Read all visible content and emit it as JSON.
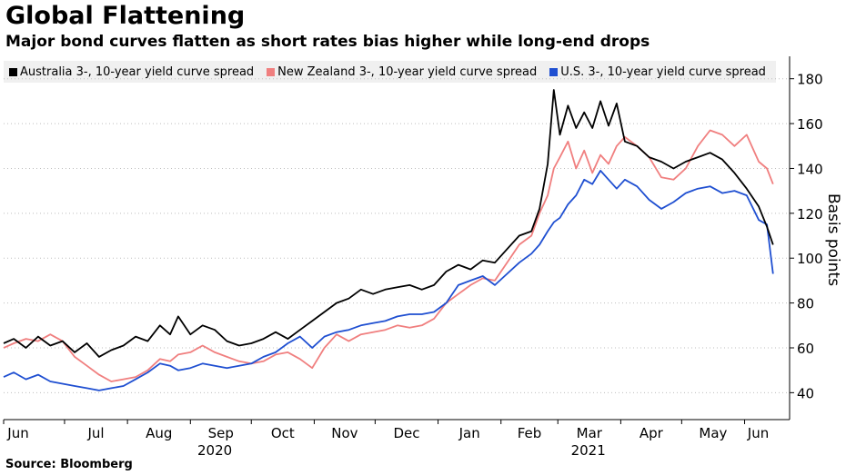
{
  "chart_data": {
    "type": "line",
    "title": "Global Flattening",
    "subtitle": "Major bond curves flatten as short rates bias higher while long-end drops",
    "ylabel": "Basis points",
    "source": "Source: Bloomberg",
    "ylim": [
      28,
      190
    ],
    "y_ticks": [
      40,
      60,
      80,
      100,
      120,
      140,
      160,
      180
    ],
    "x_start": "2020-06-01",
    "x_end": "2021-06-16",
    "x_ticks": [
      {
        "label": "Jun",
        "date": "2020-06-01"
      },
      {
        "label": "Jul",
        "date": "2020-07-01"
      },
      {
        "label": "Aug",
        "date": "2020-08-01"
      },
      {
        "label": "Sep",
        "date": "2020-09-01"
      },
      {
        "label": "Oct",
        "date": "2020-10-01"
      },
      {
        "label": "Nov",
        "date": "2020-11-01"
      },
      {
        "label": "Dec",
        "date": "2020-12-01"
      },
      {
        "label": "Jan",
        "date": "2021-01-01"
      },
      {
        "label": "Feb",
        "date": "2021-02-01"
      },
      {
        "label": "Mar",
        "date": "2021-03-01"
      },
      {
        "label": "Apr",
        "date": "2021-04-01"
      },
      {
        "label": "May",
        "date": "2021-05-01"
      },
      {
        "label": "Jun",
        "date": "2021-06-01"
      }
    ],
    "year_labels": [
      {
        "label": "2020",
        "date": "2020-09-13"
      },
      {
        "label": "2021",
        "date": "2021-03-16"
      }
    ],
    "legend_position": "top",
    "grid": "horizontal-dotted",
    "series": [
      {
        "name": "Australia 3-, 10-year yield curve spread",
        "color": "#000000",
        "points": [
          [
            "2020-06-01",
            62
          ],
          [
            "2020-06-06",
            64
          ],
          [
            "2020-06-12",
            60
          ],
          [
            "2020-06-18",
            65
          ],
          [
            "2020-06-24",
            61
          ],
          [
            "2020-06-30",
            63
          ],
          [
            "2020-07-06",
            58
          ],
          [
            "2020-07-12",
            62
          ],
          [
            "2020-07-18",
            56
          ],
          [
            "2020-07-24",
            59
          ],
          [
            "2020-07-30",
            61
          ],
          [
            "2020-08-05",
            65
          ],
          [
            "2020-08-11",
            63
          ],
          [
            "2020-08-17",
            70
          ],
          [
            "2020-08-22",
            66
          ],
          [
            "2020-08-26",
            74
          ],
          [
            "2020-09-01",
            66
          ],
          [
            "2020-09-07",
            70
          ],
          [
            "2020-09-13",
            68
          ],
          [
            "2020-09-19",
            63
          ],
          [
            "2020-09-25",
            61
          ],
          [
            "2020-10-01",
            62
          ],
          [
            "2020-10-07",
            64
          ],
          [
            "2020-10-13",
            67
          ],
          [
            "2020-10-19",
            64
          ],
          [
            "2020-10-25",
            68
          ],
          [
            "2020-10-31",
            72
          ],
          [
            "2020-11-06",
            76
          ],
          [
            "2020-11-12",
            80
          ],
          [
            "2020-11-18",
            82
          ],
          [
            "2020-11-24",
            86
          ],
          [
            "2020-11-30",
            84
          ],
          [
            "2020-12-06",
            86
          ],
          [
            "2020-12-12",
            87
          ],
          [
            "2020-12-18",
            88
          ],
          [
            "2020-12-24",
            86
          ],
          [
            "2020-12-30",
            88
          ],
          [
            "2021-01-05",
            94
          ],
          [
            "2021-01-11",
            97
          ],
          [
            "2021-01-17",
            95
          ],
          [
            "2021-01-23",
            99
          ],
          [
            "2021-01-29",
            98
          ],
          [
            "2021-02-04",
            104
          ],
          [
            "2021-02-10",
            110
          ],
          [
            "2021-02-16",
            112
          ],
          [
            "2021-02-20",
            122
          ],
          [
            "2021-02-24",
            142
          ],
          [
            "2021-02-27",
            175
          ],
          [
            "2021-03-02",
            155
          ],
          [
            "2021-03-06",
            168
          ],
          [
            "2021-03-10",
            158
          ],
          [
            "2021-03-14",
            165
          ],
          [
            "2021-03-18",
            158
          ],
          [
            "2021-03-22",
            170
          ],
          [
            "2021-03-26",
            159
          ],
          [
            "2021-03-30",
            169
          ],
          [
            "2021-04-03",
            152
          ],
          [
            "2021-04-09",
            150
          ],
          [
            "2021-04-15",
            145
          ],
          [
            "2021-04-21",
            143
          ],
          [
            "2021-04-27",
            140
          ],
          [
            "2021-05-03",
            143
          ],
          [
            "2021-05-09",
            145
          ],
          [
            "2021-05-15",
            147
          ],
          [
            "2021-05-21",
            144
          ],
          [
            "2021-05-27",
            138
          ],
          [
            "2021-06-02",
            131
          ],
          [
            "2021-06-08",
            123
          ],
          [
            "2021-06-12",
            114
          ],
          [
            "2021-06-15",
            106
          ]
        ]
      },
      {
        "name": "New Zealand 3-, 10-year yield curve spread",
        "color": "#f07f7f",
        "points": [
          [
            "2020-06-01",
            60
          ],
          [
            "2020-06-06",
            62
          ],
          [
            "2020-06-12",
            64
          ],
          [
            "2020-06-18",
            63
          ],
          [
            "2020-06-24",
            66
          ],
          [
            "2020-06-30",
            63
          ],
          [
            "2020-07-06",
            56
          ],
          [
            "2020-07-12",
            52
          ],
          [
            "2020-07-18",
            48
          ],
          [
            "2020-07-24",
            45
          ],
          [
            "2020-07-30",
            46
          ],
          [
            "2020-08-05",
            47
          ],
          [
            "2020-08-11",
            50
          ],
          [
            "2020-08-17",
            55
          ],
          [
            "2020-08-22",
            54
          ],
          [
            "2020-08-26",
            57
          ],
          [
            "2020-09-01",
            58
          ],
          [
            "2020-09-07",
            61
          ],
          [
            "2020-09-13",
            58
          ],
          [
            "2020-09-19",
            56
          ],
          [
            "2020-09-25",
            54
          ],
          [
            "2020-10-01",
            53
          ],
          [
            "2020-10-07",
            54
          ],
          [
            "2020-10-13",
            57
          ],
          [
            "2020-10-19",
            58
          ],
          [
            "2020-10-25",
            55
          ],
          [
            "2020-10-31",
            51
          ],
          [
            "2020-11-06",
            60
          ],
          [
            "2020-11-12",
            66
          ],
          [
            "2020-11-18",
            63
          ],
          [
            "2020-11-24",
            66
          ],
          [
            "2020-11-30",
            67
          ],
          [
            "2020-12-06",
            68
          ],
          [
            "2020-12-12",
            70
          ],
          [
            "2020-12-18",
            69
          ],
          [
            "2020-12-24",
            70
          ],
          [
            "2020-12-30",
            73
          ],
          [
            "2021-01-05",
            80
          ],
          [
            "2021-01-11",
            84
          ],
          [
            "2021-01-17",
            88
          ],
          [
            "2021-01-23",
            91
          ],
          [
            "2021-01-29",
            90
          ],
          [
            "2021-02-04",
            98
          ],
          [
            "2021-02-10",
            106
          ],
          [
            "2021-02-16",
            110
          ],
          [
            "2021-02-20",
            120
          ],
          [
            "2021-02-24",
            128
          ],
          [
            "2021-02-27",
            140
          ],
          [
            "2021-03-02",
            145
          ],
          [
            "2021-03-06",
            152
          ],
          [
            "2021-03-10",
            140
          ],
          [
            "2021-03-14",
            148
          ],
          [
            "2021-03-18",
            138
          ],
          [
            "2021-03-22",
            146
          ],
          [
            "2021-03-26",
            142
          ],
          [
            "2021-03-30",
            150
          ],
          [
            "2021-04-03",
            154
          ],
          [
            "2021-04-09",
            150
          ],
          [
            "2021-04-15",
            145
          ],
          [
            "2021-04-21",
            136
          ],
          [
            "2021-04-27",
            135
          ],
          [
            "2021-05-03",
            140
          ],
          [
            "2021-05-09",
            150
          ],
          [
            "2021-05-15",
            157
          ],
          [
            "2021-05-21",
            155
          ],
          [
            "2021-05-27",
            150
          ],
          [
            "2021-06-02",
            155
          ],
          [
            "2021-06-08",
            143
          ],
          [
            "2021-06-12",
            140
          ],
          [
            "2021-06-15",
            133
          ]
        ]
      },
      {
        "name": "U.S. 3-, 10-year yield curve spread",
        "color": "#1f4fd1",
        "points": [
          [
            "2020-06-01",
            47
          ],
          [
            "2020-06-06",
            49
          ],
          [
            "2020-06-12",
            46
          ],
          [
            "2020-06-18",
            48
          ],
          [
            "2020-06-24",
            45
          ],
          [
            "2020-06-30",
            44
          ],
          [
            "2020-07-06",
            43
          ],
          [
            "2020-07-12",
            42
          ],
          [
            "2020-07-18",
            41
          ],
          [
            "2020-07-24",
            42
          ],
          [
            "2020-07-30",
            43
          ],
          [
            "2020-08-05",
            46
          ],
          [
            "2020-08-11",
            49
          ],
          [
            "2020-08-17",
            53
          ],
          [
            "2020-08-22",
            52
          ],
          [
            "2020-08-26",
            50
          ],
          [
            "2020-09-01",
            51
          ],
          [
            "2020-09-07",
            53
          ],
          [
            "2020-09-13",
            52
          ],
          [
            "2020-09-19",
            51
          ],
          [
            "2020-09-25",
            52
          ],
          [
            "2020-10-01",
            53
          ],
          [
            "2020-10-07",
            56
          ],
          [
            "2020-10-13",
            58
          ],
          [
            "2020-10-19",
            62
          ],
          [
            "2020-10-25",
            65
          ],
          [
            "2020-10-31",
            60
          ],
          [
            "2020-11-06",
            65
          ],
          [
            "2020-11-12",
            67
          ],
          [
            "2020-11-18",
            68
          ],
          [
            "2020-11-24",
            70
          ],
          [
            "2020-11-30",
            71
          ],
          [
            "2020-12-06",
            72
          ],
          [
            "2020-12-12",
            74
          ],
          [
            "2020-12-18",
            75
          ],
          [
            "2020-12-24",
            75
          ],
          [
            "2020-12-30",
            76
          ],
          [
            "2021-01-05",
            80
          ],
          [
            "2021-01-11",
            88
          ],
          [
            "2021-01-17",
            90
          ],
          [
            "2021-01-23",
            92
          ],
          [
            "2021-01-29",
            88
          ],
          [
            "2021-02-04",
            93
          ],
          [
            "2021-02-10",
            98
          ],
          [
            "2021-02-16",
            102
          ],
          [
            "2021-02-20",
            106
          ],
          [
            "2021-02-24",
            112
          ],
          [
            "2021-02-27",
            116
          ],
          [
            "2021-03-02",
            118
          ],
          [
            "2021-03-06",
            124
          ],
          [
            "2021-03-10",
            128
          ],
          [
            "2021-03-14",
            135
          ],
          [
            "2021-03-18",
            133
          ],
          [
            "2021-03-22",
            139
          ],
          [
            "2021-03-26",
            135
          ],
          [
            "2021-03-30",
            131
          ],
          [
            "2021-04-03",
            135
          ],
          [
            "2021-04-09",
            132
          ],
          [
            "2021-04-15",
            126
          ],
          [
            "2021-04-21",
            122
          ],
          [
            "2021-04-27",
            125
          ],
          [
            "2021-05-03",
            129
          ],
          [
            "2021-05-09",
            131
          ],
          [
            "2021-05-15",
            132
          ],
          [
            "2021-05-21",
            129
          ],
          [
            "2021-05-27",
            130
          ],
          [
            "2021-06-02",
            128
          ],
          [
            "2021-06-08",
            117
          ],
          [
            "2021-06-12",
            115
          ],
          [
            "2021-06-15",
            93
          ]
        ]
      }
    ]
  }
}
